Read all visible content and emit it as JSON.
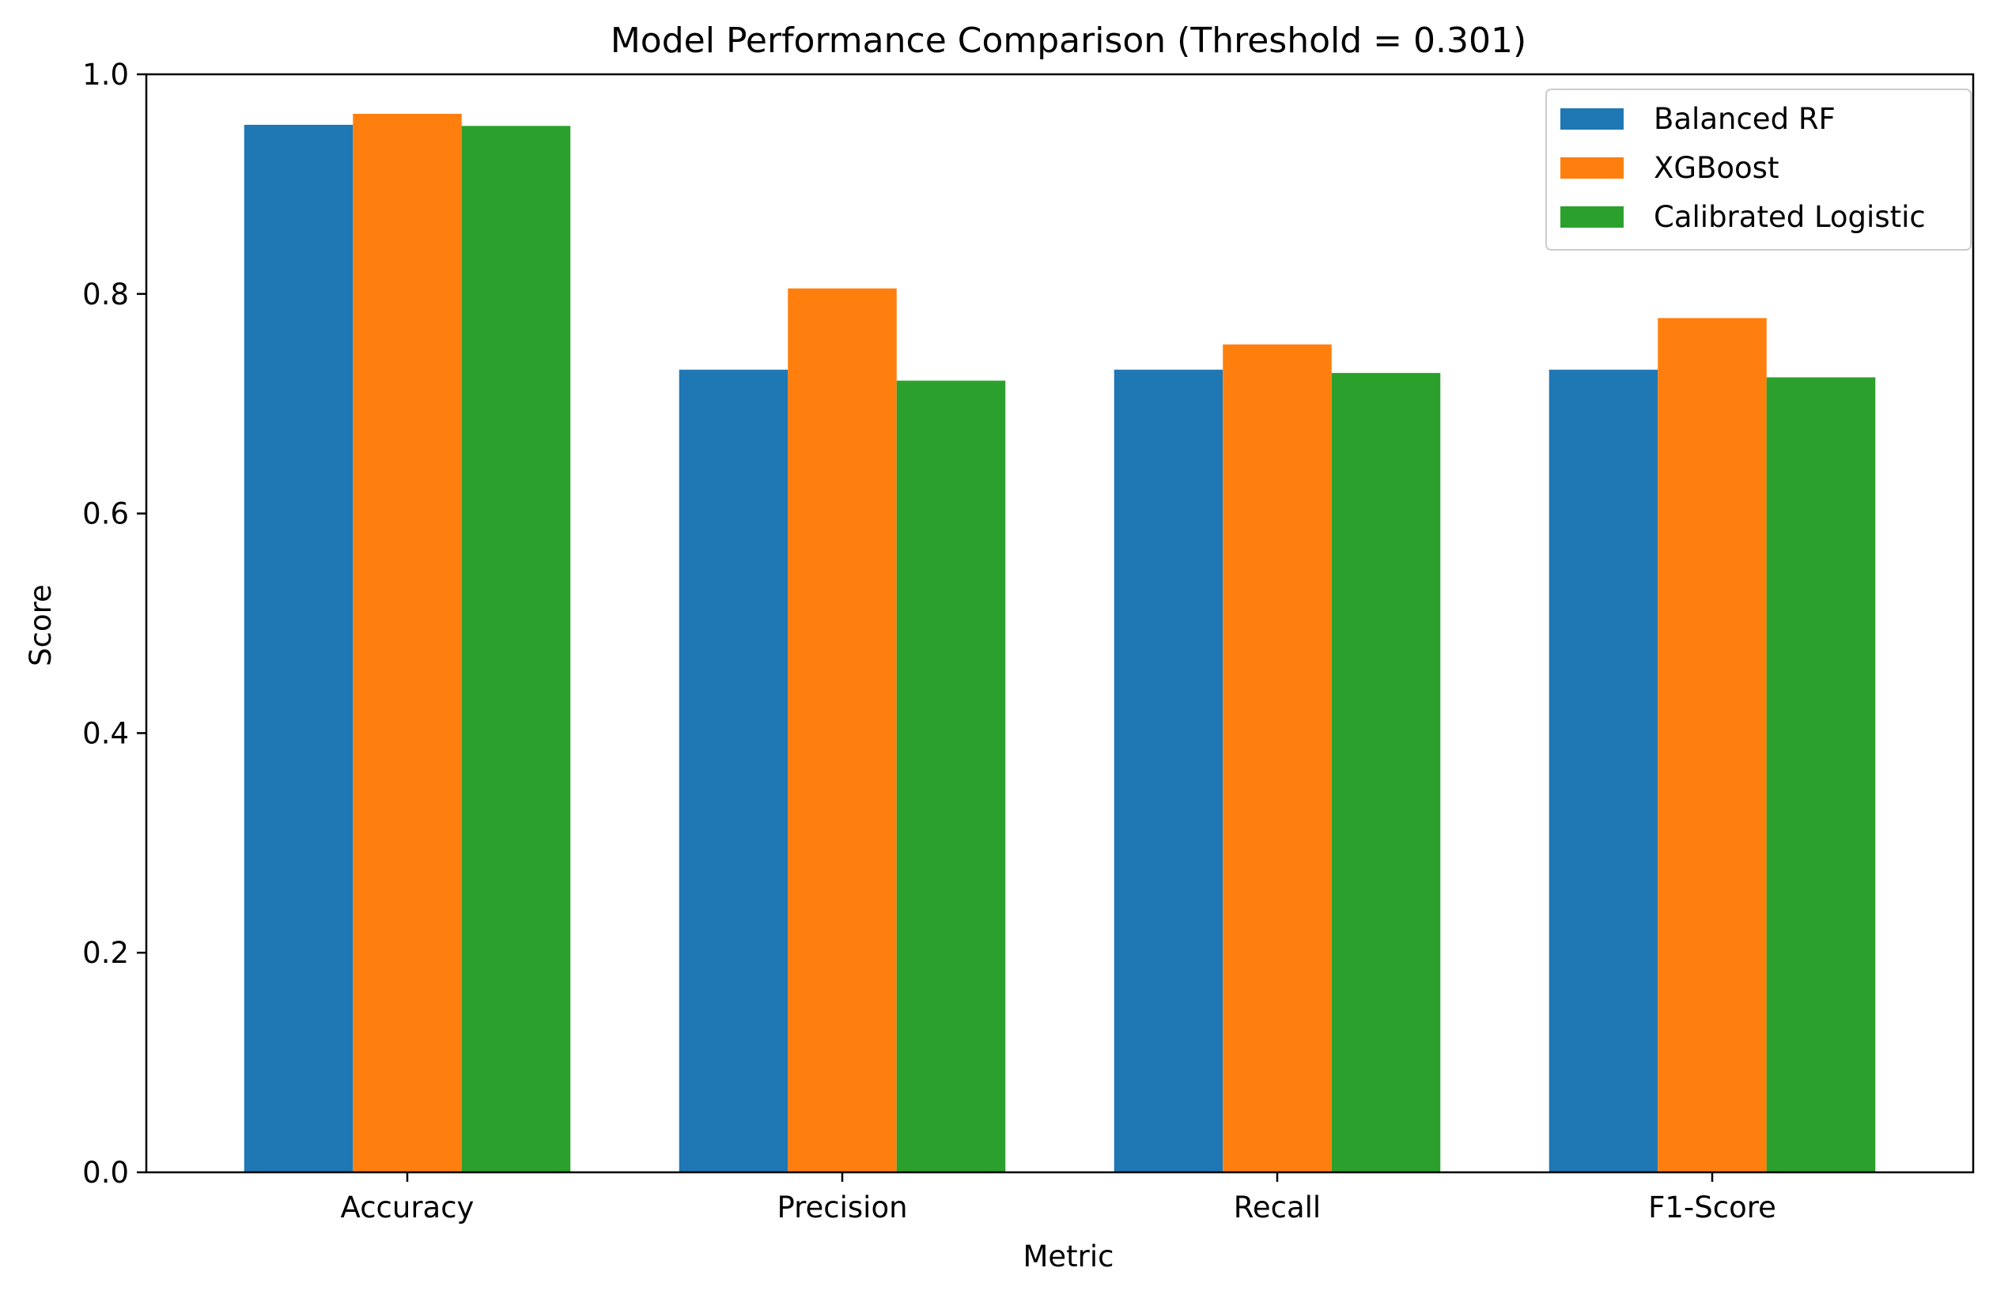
{
  "chart_data": {
    "type": "bar",
    "title": "Model Performance Comparison (Threshold = 0.301)",
    "xlabel": "Metric",
    "ylabel": "Score",
    "categories": [
      "Accuracy",
      "Precision",
      "Recall",
      "F1-Score"
    ],
    "series": [
      {
        "name": "Balanced RF",
        "color": "#1f77b4",
        "values": [
          0.954,
          0.731,
          0.731,
          0.731
        ]
      },
      {
        "name": "XGBoost",
        "color": "#ff7f0e",
        "values": [
          0.964,
          0.805,
          0.754,
          0.778
        ]
      },
      {
        "name": "Calibrated Logistic",
        "color": "#2ca02c",
        "values": [
          0.953,
          0.721,
          0.728,
          0.724
        ]
      }
    ],
    "ylim": [
      0,
      1.0
    ],
    "yticks": [
      "0.0",
      "0.2",
      "0.4",
      "0.6",
      "0.8",
      "1.0"
    ],
    "grid": false,
    "legend_position": "top-right"
  }
}
